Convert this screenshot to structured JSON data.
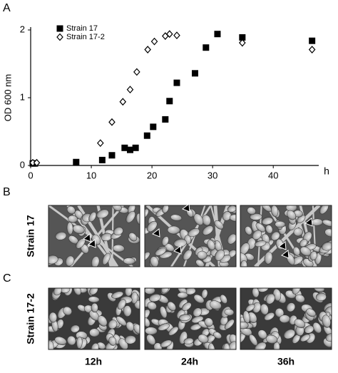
{
  "chart_data": {
    "type": "scatter",
    "panel_label": "A",
    "xlabel": "h",
    "ylabel": "OD 600 nm",
    "xlim": [
      0,
      47.5
    ],
    "ylim": [
      0,
      2
    ],
    "xticks": [
      0,
      10,
      20,
      30,
      40
    ],
    "yticks": [
      0,
      1,
      2
    ],
    "legend": "upper left",
    "series": [
      {
        "name": "Strain 17",
        "marker": "square",
        "color": "#000000",
        "x": [
          0.35,
          0.7,
          7.5,
          11.8,
          13.4,
          15.5,
          16.4,
          17.3,
          19.2,
          20.2,
          22.2,
          22.9,
          24.1,
          27.1,
          28.9,
          30.8,
          34.9,
          46.4
        ],
        "values": [
          0.03,
          0.03,
          0.05,
          0.08,
          0.15,
          0.26,
          0.23,
          0.26,
          0.44,
          0.57,
          0.68,
          0.95,
          1.22,
          1.36,
          1.74,
          1.94,
          1.89,
          1.84
        ]
      },
      {
        "name": "Strain 17-2",
        "marker": "diamond",
        "color": "#000000",
        "x": [
          0.35,
          1.0,
          11.5,
          13.4,
          15.2,
          16.4,
          17.5,
          19.3,
          20.4,
          22.2,
          22.9,
          24.1,
          34.9,
          46.4
        ],
        "values": [
          0.04,
          0.04,
          0.33,
          0.64,
          0.94,
          1.12,
          1.38,
          1.71,
          1.83,
          1.91,
          1.94,
          1.92,
          1.81,
          1.71
        ]
      }
    ]
  },
  "panels": {
    "b_label": "B",
    "c_label": "C",
    "rows": [
      "Strain 17",
      "Strain 17-2"
    ],
    "columns": [
      "12h",
      "24h",
      "36h"
    ]
  }
}
